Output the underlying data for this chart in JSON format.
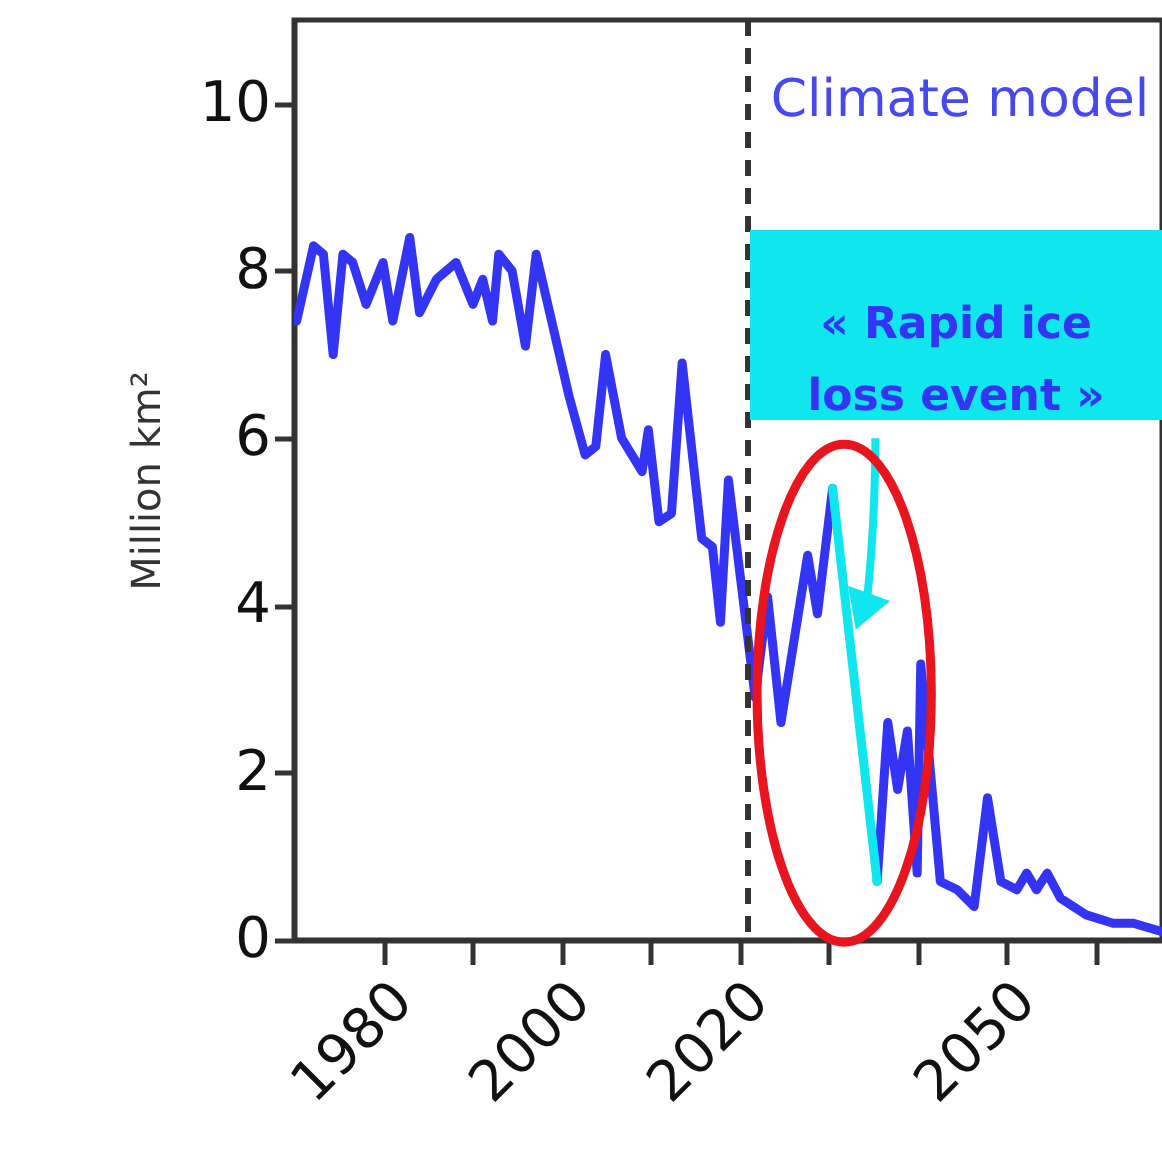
{
  "chart_data": {
    "type": "line",
    "title": "Climate model",
    "ylabel": "Million km²",
    "xlim": [
      1970,
      2067.5
    ],
    "ylim": [
      0,
      11
    ],
    "xticks": [
      {
        "value": 1980,
        "label": "1980"
      },
      {
        "value": 1990,
        "label": null
      },
      {
        "value": 2000,
        "label": "2000"
      },
      {
        "value": 2010,
        "label": null
      },
      {
        "value": 2020,
        "label": "2020"
      },
      {
        "value": 2030,
        "label": null
      },
      {
        "value": 2040,
        "label": null
      },
      {
        "value": 2050,
        "label": "2050"
      },
      {
        "value": 2060,
        "label": null
      }
    ],
    "yticks": [
      0,
      2,
      4,
      6,
      8,
      10
    ],
    "grid": false,
    "marker": "none",
    "line_style": "solid",
    "series": [
      {
        "color": "#3434f5",
        "x": [
          1970.3,
          1972.2,
          1973.3,
          1974.4,
          1975.5,
          1976.6,
          1978.1,
          1980,
          1981.1,
          1983,
          1984.1,
          1986,
          1988.2,
          1990.1,
          1991.2,
          1992.3,
          1993,
          1994.5,
          1996,
          1997.2,
          2000.9,
          2002.7,
          2003.9,
          2005,
          2006.8,
          2009.1,
          2009.8,
          2011,
          2012.4,
          2013.6,
          2015.8,
          2017,
          2017.9,
          2018.8,
          2020.3,
          2021.8,
          2023.2,
          2024.7,
          2027.7,
          2028.8,
          2030.5,
          2033,
          2035.5,
          2036.7,
          2037.8,
          2038.9,
          2040,
          2040.4,
          2042.6,
          2044.5,
          2046.4,
          2047.9,
          2049.4,
          2051.2,
          2052.3,
          2053.4,
          2054.6,
          2056.1,
          2059,
          2062,
          2064.3,
          2067.5
        ],
        "values": [
          7.4,
          8.3,
          8.2,
          7.0,
          8.2,
          8.1,
          7.6,
          8.1,
          7.4,
          8.4,
          7.5,
          7.9,
          8.1,
          7.6,
          7.9,
          7.4,
          8.2,
          8.0,
          7.1,
          8.2,
          6.5,
          5.8,
          5.9,
          7.0,
          6.0,
          5.6,
          6.1,
          5.0,
          5.1,
          6.9,
          4.8,
          4.7,
          3.8,
          5.5,
          4.2,
          2.9,
          4.1,
          2.6,
          4.6,
          3.9,
          5.4,
          null,
          0.7,
          2.6,
          1.8,
          2.5,
          0.8,
          3.3,
          0.7,
          0.6,
          0.4,
          1.7,
          0.7,
          0.6,
          0.8,
          0.6,
          0.8,
          0.5,
          0.3,
          0.2,
          0.2,
          0.1
        ]
      },
      {
        "color": "#10e6ee",
        "x": [
          2030.5,
          2035.5
        ],
        "values": [
          5.4,
          0.7
        ]
      }
    ],
    "ref_lines": [
      {
        "axis": "x",
        "value": 2021,
        "label": null,
        "color": "#333333",
        "line_style": "dashed"
      }
    ],
    "annotations": [
      "« Rapid ice loss event »"
    ]
  }
}
